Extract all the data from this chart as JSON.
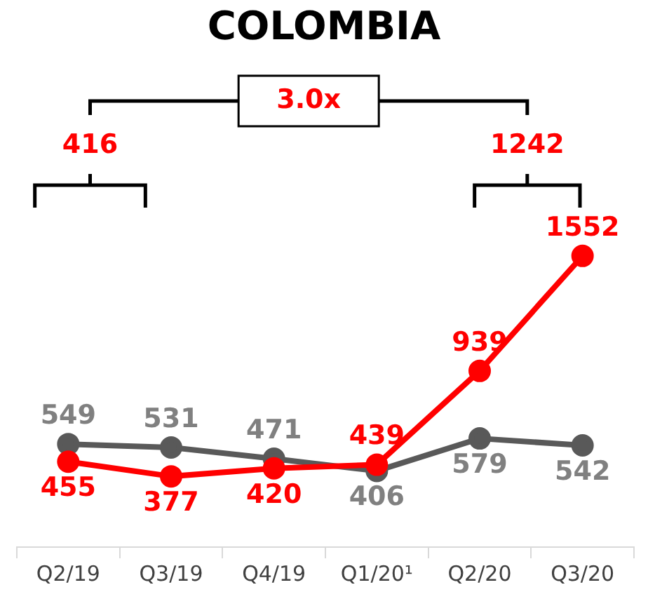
{
  "chart_data": {
    "type": "line",
    "title": "COLOMBIA",
    "categories": [
      "Q2/19",
      "Q3/19",
      "Q4/19",
      "Q1/20¹",
      "Q2/20",
      "Q3/20"
    ],
    "series": [
      {
        "color": "#595959",
        "values": [
          549,
          531,
          471,
          406,
          579,
          542
        ]
      },
      {
        "color": "#ff0000",
        "values": [
          455,
          377,
          420,
          439,
          939,
          1552
        ]
      }
    ],
    "tick_labels": "x",
    "legend": false,
    "grid": false,
    "marker": "circle",
    "line_style": "solid",
    "data_labels": true,
    "annotations": [
      "416",
      "1242",
      "3.0x"
    ]
  }
}
